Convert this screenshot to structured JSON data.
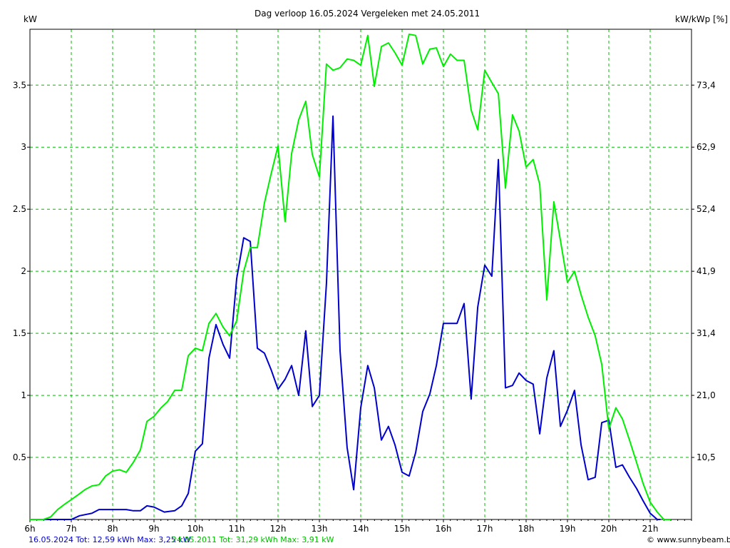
{
  "header": {
    "title": "Dag  verloop 16.05.2024   Vergeleken met 24.05.2011",
    "left_unit": "kW",
    "right_unit": "kW/kWp [%]"
  },
  "footer": {
    "series1_text": "16.05.2024 Tot: 12,59 kWh Max: 3,25 kW",
    "series2_text": "24.05.2011 Tot: 31,29 kWh Max: 3,91 kW",
    "brand": "www.sunnybeam.be",
    "brand_icon": "copyright-icon"
  },
  "chart_data": {
    "type": "line",
    "title": "Dag  verloop 16.05.2024   Vergeleken met 24.05.2011",
    "ylabel": "kW",
    "y2label": "kW/kWp [%]",
    "xlim": [
      6,
      22
    ],
    "ylim": [
      0,
      3.95
    ],
    "grid": true,
    "x_ticks": [
      6,
      7,
      8,
      9,
      10,
      11,
      12,
      13,
      14,
      15,
      16,
      17,
      18,
      19,
      20,
      21
    ],
    "x_tick_labels": [
      "6h",
      "7h",
      "8h",
      "9h",
      "10h",
      "11h",
      "12h",
      "13h",
      "14h",
      "15h",
      "16h",
      "17h",
      "18h",
      "19h",
      "20h",
      "21h"
    ],
    "y_ticks": [
      0.5,
      1,
      1.5,
      2,
      2.5,
      3,
      3.5
    ],
    "y_tick_labels": [
      "0.5",
      "1",
      "1.5",
      "2",
      "2.5",
      "3",
      "3.5"
    ],
    "y2_tick_labels": [
      "10,5",
      "21,0",
      "31,4",
      "41,9",
      "52,4",
      "62,9",
      "73,4"
    ],
    "series": [
      {
        "color": "#0000cc",
        "x": [
          6.0,
          6.6,
          6.8,
          7.0,
          7.2,
          7.5,
          7.67,
          8.0,
          8.33,
          8.5,
          8.67,
          8.83,
          9.0,
          9.25,
          9.5,
          9.67,
          9.83,
          10.0,
          10.17,
          10.33,
          10.5,
          10.67,
          10.83,
          11.0,
          11.17,
          11.33,
          11.5,
          11.67,
          11.83,
          12.0,
          12.17,
          12.33,
          12.5,
          12.67,
          12.83,
          13.0,
          13.17,
          13.33,
          13.5,
          13.67,
          13.83,
          14.0,
          14.17,
          14.33,
          14.5,
          14.67,
          14.83,
          15.0,
          15.17,
          15.33,
          15.5,
          15.67,
          15.83,
          16.0,
          16.17,
          16.33,
          16.5,
          16.67,
          16.83,
          17.0,
          17.17,
          17.33,
          17.5,
          17.67,
          17.83,
          18.0,
          18.17,
          18.33,
          18.5,
          18.67,
          18.83,
          19.0,
          19.17,
          19.33,
          19.5,
          19.67,
          19.83,
          20.0,
          20.17,
          20.33,
          20.5,
          20.67,
          20.83,
          21.0,
          21.17,
          21.25
        ],
        "values": [
          0.0,
          0.0,
          0.0,
          0.0,
          0.03,
          0.05,
          0.08,
          0.08,
          0.08,
          0.07,
          0.07,
          0.11,
          0.1,
          0.06,
          0.07,
          0.11,
          0.21,
          0.55,
          0.61,
          1.3,
          1.57,
          1.41,
          1.3,
          1.94,
          2.27,
          2.24,
          1.38,
          1.34,
          1.21,
          1.05,
          1.13,
          1.24,
          1.0,
          1.52,
          0.91,
          1.0,
          1.9,
          3.25,
          1.36,
          0.58,
          0.24,
          0.9,
          1.24,
          1.06,
          0.64,
          0.75,
          0.6,
          0.38,
          0.35,
          0.54,
          0.87,
          1.01,
          1.24,
          1.58,
          1.58,
          1.58,
          1.74,
          0.97,
          1.71,
          2.05,
          1.96,
          2.9,
          1.06,
          1.08,
          1.18,
          1.12,
          1.09,
          0.69,
          1.14,
          1.36,
          0.75,
          0.88,
          1.04,
          0.6,
          0.32,
          0.34,
          0.78,
          0.8,
          0.42,
          0.44,
          0.34,
          0.25,
          0.15,
          0.05,
          0.0,
          0.0
        ]
      },
      {
        "color": "#00ee00",
        "x": [
          6.0,
          6.33,
          6.5,
          6.67,
          6.83,
          7.0,
          7.17,
          7.33,
          7.5,
          7.67,
          7.83,
          8.0,
          8.17,
          8.33,
          8.5,
          8.67,
          8.83,
          9.0,
          9.17,
          9.33,
          9.5,
          9.67,
          9.83,
          10.0,
          10.17,
          10.33,
          10.5,
          10.67,
          10.83,
          11.0,
          11.17,
          11.33,
          11.5,
          11.67,
          11.83,
          12.0,
          12.17,
          12.33,
          12.5,
          12.67,
          12.83,
          13.0,
          13.17,
          13.33,
          13.5,
          13.67,
          13.83,
          14.0,
          14.17,
          14.33,
          14.5,
          14.67,
          14.83,
          15.0,
          15.17,
          15.33,
          15.5,
          15.67,
          15.83,
          16.0,
          16.17,
          16.33,
          16.5,
          16.67,
          16.83,
          17.0,
          17.17,
          17.33,
          17.5,
          17.67,
          17.83,
          18.0,
          18.17,
          18.33,
          18.5,
          18.67,
          18.83,
          19.0,
          19.17,
          19.33,
          19.5,
          19.67,
          19.83,
          20.0,
          20.17,
          20.33,
          20.5,
          20.67,
          20.83,
          21.0,
          21.17,
          21.33,
          21.5
        ],
        "values": [
          0.0,
          0.0,
          0.02,
          0.08,
          0.12,
          0.16,
          0.2,
          0.24,
          0.27,
          0.28,
          0.35,
          0.39,
          0.4,
          0.38,
          0.46,
          0.56,
          0.79,
          0.83,
          0.9,
          0.95,
          1.04,
          1.04,
          1.32,
          1.38,
          1.36,
          1.58,
          1.66,
          1.55,
          1.48,
          1.6,
          2.0,
          2.19,
          2.19,
          2.55,
          2.78,
          3.01,
          2.4,
          2.95,
          3.22,
          3.37,
          2.94,
          2.76,
          3.67,
          3.62,
          3.64,
          3.71,
          3.7,
          3.66,
          3.9,
          3.49,
          3.81,
          3.84,
          3.76,
          3.66,
          3.91,
          3.9,
          3.67,
          3.79,
          3.8,
          3.65,
          3.75,
          3.7,
          3.7,
          3.3,
          3.14,
          3.62,
          3.52,
          3.43,
          2.67,
          3.26,
          3.13,
          2.84,
          2.9,
          2.7,
          1.77,
          2.56,
          2.25,
          1.91,
          2.0,
          1.81,
          1.63,
          1.48,
          1.25,
          0.73,
          0.9,
          0.81,
          0.64,
          0.46,
          0.29,
          0.14,
          0.06,
          0.0,
          0.0
        ]
      }
    ]
  }
}
